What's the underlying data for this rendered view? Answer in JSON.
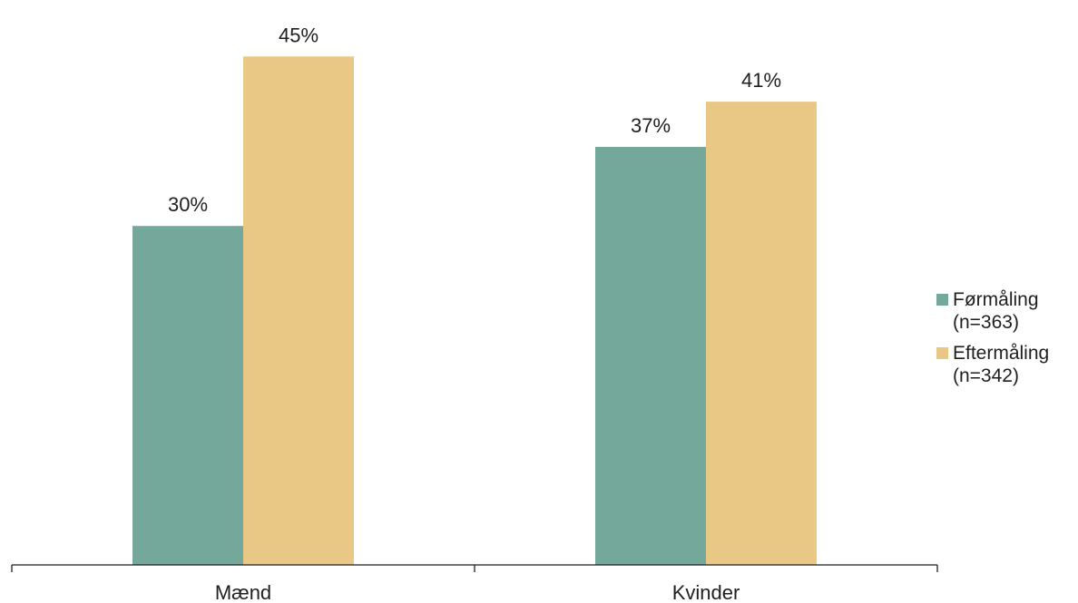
{
  "chart_data": {
    "type": "bar",
    "title": "",
    "xlabel": "",
    "ylabel": "",
    "ylim": [
      0,
      50
    ],
    "grid": false,
    "legend_position": "right",
    "categories": [
      "Mænd",
      "Kvinder"
    ],
    "series": [
      {
        "name": "Førmåling\n(n=363)",
        "values": [
          30,
          37
        ],
        "labels": [
          "30%",
          "37%"
        ],
        "color": "#74a89b"
      },
      {
        "name": "Eftermåling\n(n=342)",
        "values": [
          45,
          41
        ],
        "labels": [
          "45%",
          "41%"
        ],
        "color": "#e9c784"
      }
    ]
  }
}
